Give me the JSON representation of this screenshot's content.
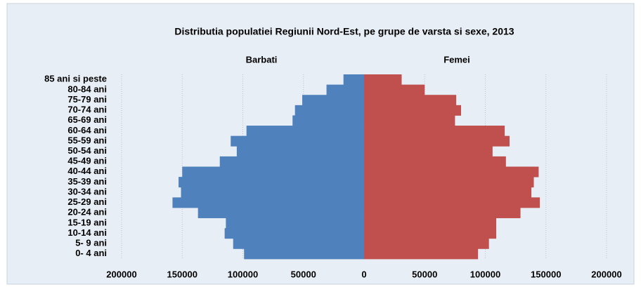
{
  "chart_data": {
    "type": "pyramid",
    "title": "Distributia populatiei Regiunii Nord-Est, pe grupe de varsta si sexe, 2013",
    "categories": [
      "85 ani si peste",
      "80-84 ani",
      "75-79 ani",
      "70-74 ani",
      "65-69 ani",
      "60-64 ani",
      "55-59 ani",
      "50-54 ani",
      "45-49 ani",
      "40-44 ani",
      "35-39 ani",
      "30-34 ani",
      "25-29 ani",
      "20-24 ani",
      "15-19 ani",
      "10-14 ani",
      "5- 9 ani",
      "0- 4 ani"
    ],
    "series": [
      {
        "name": "Barbati",
        "color": "#4f81bd",
        "values": [
          -17000,
          -31000,
          -51000,
          -57000,
          -59000,
          -97000,
          -110000,
          -105000,
          -119000,
          -150000,
          -153000,
          -151000,
          -158000,
          -137000,
          -114000,
          -115000,
          -108000,
          -99000
        ]
      },
      {
        "name": "Femei",
        "color": "#c0504d",
        "values": [
          31000,
          50000,
          76000,
          80000,
          75000,
          116000,
          120000,
          106000,
          117000,
          144000,
          140000,
          138000,
          145000,
          129000,
          109000,
          109000,
          103000,
          94000
        ]
      }
    ],
    "xlim": [
      -200000,
      200000
    ],
    "xticks": [
      {
        "value": -200000,
        "label": "200000"
      },
      {
        "value": -150000,
        "label": "150000"
      },
      {
        "value": -100000,
        "label": "100000"
      },
      {
        "value": -50000,
        "label": "50000"
      },
      0,
      50000,
      100000,
      150000,
      200000
    ],
    "grid": true
  }
}
